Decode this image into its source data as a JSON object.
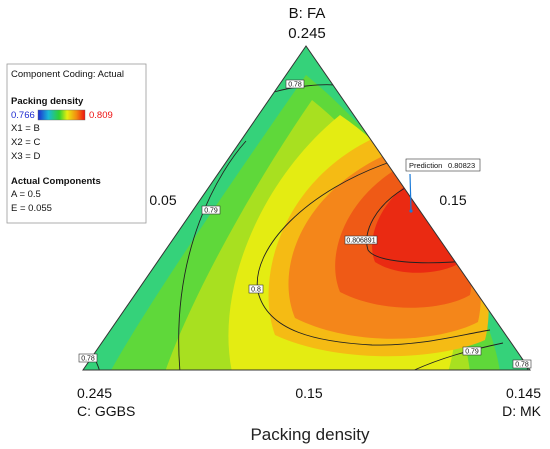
{
  "chart_data": {
    "type": "ternary-contour",
    "title": "Packing density",
    "legend": {
      "coding": "Component Coding: Actual",
      "response": "Packing density",
      "min": "0.766",
      "max": "0.809",
      "min_color": "#1e2bd0",
      "max_color": "#ee1010",
      "codes": [
        "X1 = B",
        "X2 = C",
        "X3 = D"
      ],
      "actual_heading": "Actual Components",
      "actual": [
        "A = 0.5",
        "E = 0.055"
      ]
    },
    "vertices": {
      "top": {
        "name": "B: FA",
        "value": "0.245"
      },
      "left": {
        "name": "C: GGBS",
        "value": "0.245"
      },
      "right": {
        "name": "D: MK",
        "value": "0.145"
      }
    },
    "edge_ticks": {
      "left": "0.05",
      "right": "0.15",
      "bottom": "0.15"
    },
    "contour_levels": [
      {
        "level": 0.78,
        "labels": [
          "0.78",
          "0.78",
          "0.78"
        ]
      },
      {
        "level": 0.79,
        "labels": [
          "0.79",
          "0.79"
        ]
      },
      {
        "level": 0.8,
        "labels": [
          "0.8"
        ]
      },
      {
        "level": 0.806891,
        "labels": [
          "0.806891"
        ]
      }
    ],
    "prediction": {
      "label": "Prediction",
      "value": "0.80823"
    }
  }
}
